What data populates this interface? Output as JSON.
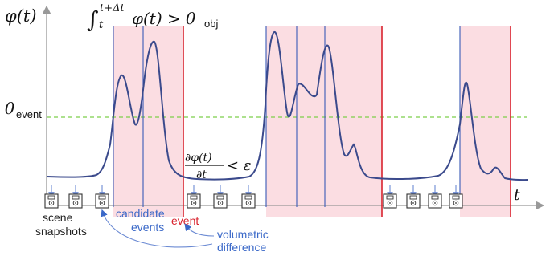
{
  "axes": {
    "y_label": "φ(t)",
    "x_label": "t"
  },
  "threshold": {
    "label_main": "θ",
    "label_sub": "event"
  },
  "integral_condition": {
    "integral": "∫",
    "upper": "t+Δt",
    "lower": "t",
    "expr": "φ(t) > θ",
    "sub": "obj"
  },
  "derivative_condition": {
    "numerator": "∂φ(t)",
    "denominator": "∂t",
    "tail": "< ε"
  },
  "annotations": {
    "scene_snapshots": [
      "scene",
      "snapshots"
    ],
    "candidate_events": [
      "candidate",
      "events"
    ],
    "event": "event",
    "volumetric_difference": [
      "volumetric",
      "difference"
    ]
  },
  "colors": {
    "curve": "#3b4a8c",
    "threshold": "#7ccf4a",
    "region": "#fbdde2",
    "event_line": "#d9232e",
    "candidate_line": "#3a5ab6",
    "snapshot_arrow": "#6b8ad3",
    "annotation_blue": "#3a68c8",
    "event_text": "#d9232e"
  },
  "icons": {
    "snapshot": "camera-snapshot-icon"
  }
}
